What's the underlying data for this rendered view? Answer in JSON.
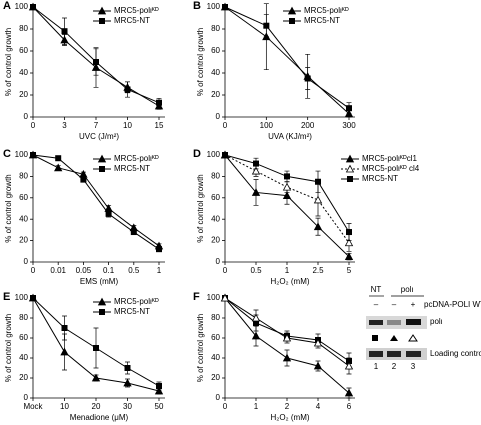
{
  "chart_data": [
    {
      "type": "line",
      "label": "A",
      "xlabel": "UVC (J/m²)",
      "ylabel": "% of control growth",
      "categories": [
        "0",
        "3",
        "7",
        "10",
        "15"
      ],
      "ylim": [
        0,
        100
      ],
      "yticks": [
        0,
        20,
        40,
        60,
        80,
        100
      ],
      "legend": "upper right",
      "series": [
        {
          "name": "MRC5-polιᴷᴰ",
          "color": "#000000",
          "marker": "triangle",
          "values": [
            100,
            70,
            45,
            27,
            10
          ],
          "errors": [
            0,
            5,
            18,
            5,
            3
          ]
        },
        {
          "name": "MRC5-NT",
          "color": "#000000",
          "marker": "square",
          "values": [
            100,
            78,
            50,
            25,
            13
          ],
          "errors": [
            0,
            12,
            12,
            7,
            4
          ]
        }
      ]
    },
    {
      "type": "line",
      "label": "B",
      "xlabel": "UVA (KJ/m²)",
      "ylabel": "% of control growth",
      "categories": [
        "0",
        "100",
        "200",
        "300"
      ],
      "ylim": [
        0,
        100
      ],
      "yticks": [
        0,
        20,
        40,
        60,
        80,
        100
      ],
      "legend": "upper right",
      "series": [
        {
          "name": "MRC5-polιᴷᴰ",
          "color": "#000000",
          "marker": "triangle",
          "values": [
            100,
            73,
            37,
            3
          ],
          "errors": [
            0,
            30,
            20,
            3
          ]
        },
        {
          "name": "MRC5-NT",
          "color": "#000000",
          "marker": "square",
          "values": [
            100,
            83,
            35,
            8
          ],
          "errors": [
            0,
            10,
            10,
            5
          ]
        }
      ]
    },
    {
      "type": "line",
      "label": "C",
      "xlabel": "EMS (mM)",
      "ylabel": "% of control growth",
      "categories": [
        "0",
        "0.01",
        "0.05",
        "0.1",
        "0.5",
        "1"
      ],
      "ylim": [
        0,
        100
      ],
      "yticks": [
        0,
        20,
        40,
        60,
        80,
        100
      ],
      "legend": "upper right",
      "series": [
        {
          "name": "MRC5-polιᴷᴰ",
          "color": "#000000",
          "marker": "triangle",
          "values": [
            100,
            88,
            82,
            50,
            32,
            15
          ],
          "errors": [
            0,
            2,
            2,
            3,
            2,
            2
          ]
        },
        {
          "name": "MRC5-NT",
          "color": "#000000",
          "marker": "square",
          "values": [
            100,
            97,
            77,
            45,
            28,
            12
          ],
          "errors": [
            0,
            2,
            2,
            3,
            2,
            2
          ]
        }
      ]
    },
    {
      "type": "line",
      "label": "D",
      "xlabel": "H₂O₂ (mM)",
      "ylabel": "% of control growth",
      "categories": [
        "0",
        "0.5",
        "1",
        "2.5",
        "5"
      ],
      "ylim": [
        0,
        100
      ],
      "yticks": [
        0,
        20,
        40,
        60,
        80,
        100
      ],
      "legend": "upper right",
      "series": [
        {
          "name": "MRC5-polιᴷᴰcl1",
          "color": "#000000",
          "marker": "triangle",
          "values": [
            100,
            65,
            62,
            33,
            5
          ],
          "errors": [
            0,
            12,
            8,
            8,
            3
          ]
        },
        {
          "name": "MRC5-polιᴷᴰ cl4",
          "color": "#000000",
          "marker": "open-triangle",
          "dash": true,
          "values": [
            100,
            85,
            70,
            58,
            18
          ],
          "errors": [
            0,
            5,
            5,
            15,
            8
          ]
        },
        {
          "name": "MRC5-NT",
          "color": "#000000",
          "marker": "square",
          "values": [
            100,
            92,
            80,
            75,
            28
          ],
          "errors": [
            0,
            5,
            5,
            10,
            8
          ]
        }
      ]
    },
    {
      "type": "line",
      "label": "E",
      "xlabel": "Menadione (μM)",
      "ylabel": "% of control growth",
      "categories": [
        "Mock",
        "10",
        "20",
        "30",
        "50"
      ],
      "ylim": [
        0,
        100
      ],
      "yticks": [
        0,
        20,
        40,
        60,
        80,
        100
      ],
      "legend": "upper right",
      "series": [
        {
          "name": "MRC5-polιᴷᴰ",
          "color": "#000000",
          "marker": "triangle",
          "values": [
            100,
            46,
            20,
            15,
            7
          ],
          "errors": [
            0,
            18,
            3,
            4,
            3
          ]
        },
        {
          "name": "MRC5-NT",
          "color": "#000000",
          "marker": "square",
          "values": [
            100,
            70,
            50,
            30,
            12
          ],
          "errors": [
            0,
            12,
            20,
            6,
            4
          ]
        }
      ]
    },
    {
      "type": "line",
      "label": "F",
      "xlabel": "H₂O₂ (mM)",
      "ylabel": "% of control growth",
      "categories": [
        "0",
        "1",
        "2",
        "4",
        "6"
      ],
      "ylim": [
        0,
        100
      ],
      "yticks": [
        0,
        20,
        40,
        60,
        80,
        100
      ],
      "series": [
        {
          "color": "#000000",
          "marker": "square",
          "values": [
            100,
            75,
            62,
            58,
            37
          ],
          "errors": [
            0,
            8,
            5,
            6,
            8
          ]
        },
        {
          "color": "#000000",
          "marker": "triangle",
          "values": [
            100,
            62,
            40,
            32,
            5
          ],
          "errors": [
            0,
            10,
            8,
            5,
            5
          ]
        },
        {
          "color": "#000000",
          "marker": "open-triangle",
          "values": [
            100,
            80,
            60,
            55,
            32
          ],
          "errors": [
            0,
            8,
            5,
            5,
            8
          ]
        }
      ]
    }
  ],
  "blot": {
    "groups": [
      "NT",
      "polι"
    ],
    "row_label": "pcDNA-POLI WT",
    "signs": [
      "–",
      "–",
      "+"
    ],
    "band_labels": [
      "polι",
      "Loading control"
    ],
    "lanes": [
      "1",
      "2",
      "3"
    ]
  }
}
